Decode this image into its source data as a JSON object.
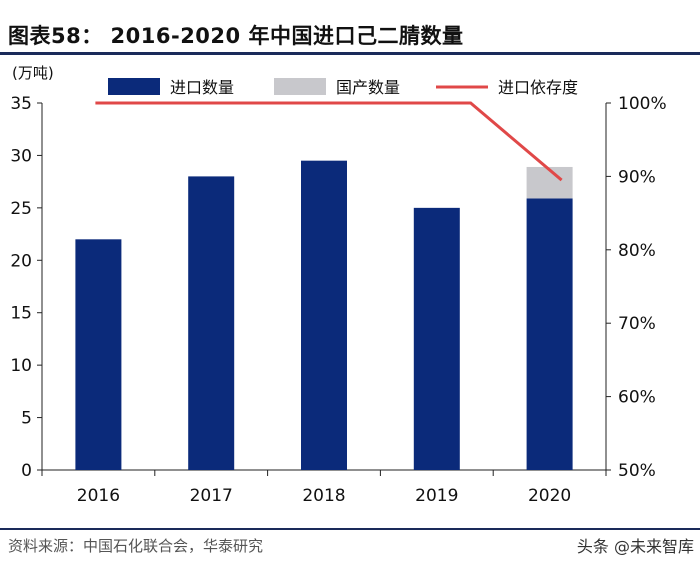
{
  "header": {
    "title": "图表58：   2016-2020 年中国进口己二腈数量"
  },
  "footer": {
    "source": "资料来源：中国石化联合会，华泰研究",
    "watermark": "头条 @未来智库"
  },
  "chart_data": {
    "type": "bar",
    "title": "图表58：   2016-2020 年中国进口己二腈数量",
    "categories": [
      "2016",
      "2017",
      "2018",
      "2019",
      "2020"
    ],
    "ylabel": "(万吨)",
    "ylim": [
      0,
      35
    ],
    "yticks": [
      0,
      5,
      10,
      15,
      20,
      25,
      30,
      35
    ],
    "y2lim": [
      50,
      100
    ],
    "y2ticks": [
      "50%",
      "60%",
      "70%",
      "80%",
      "90%",
      "100%"
    ],
    "stacked": true,
    "grid": false,
    "legend_position": "top",
    "series": [
      {
        "name": "进口数量",
        "kind": "bar",
        "axis": "left",
        "color": "#0b2a7a",
        "values": [
          22,
          28,
          29.5,
          25,
          25.9
        ]
      },
      {
        "name": "国产数量",
        "kind": "bar",
        "axis": "left",
        "color": "#c8c8cc",
        "values": [
          0,
          0,
          0,
          0,
          3
        ]
      },
      {
        "name": "进口依存度",
        "kind": "line",
        "axis": "right",
        "color": "#e04848",
        "values": [
          100,
          100,
          100,
          100,
          89.5
        ]
      }
    ]
  }
}
